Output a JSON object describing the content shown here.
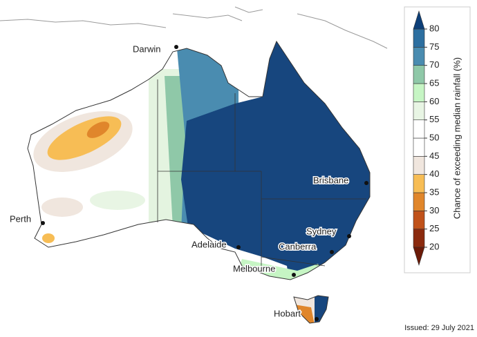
{
  "map": {
    "cities": [
      "Darwin",
      "Brisbane",
      "Perth",
      "Sydney",
      "Adelaide",
      "Canberra",
      "Melbourne",
      "Hobart"
    ]
  },
  "legend": {
    "title": "Chance of exceeding median rainfall (%)",
    "ticks": [
      20,
      25,
      30,
      35,
      40,
      45,
      50,
      55,
      60,
      65,
      70,
      75,
      80
    ],
    "colors": [
      "#6b1a08",
      "#8b2a0e",
      "#c0521a",
      "#e0862b",
      "#f7bd55",
      "#f0e6de",
      "#ffffff",
      "#ffffff",
      "#e8f5e4",
      "#c6f5c4",
      "#8fc8a8",
      "#4a8cb0",
      "#2d6fa0",
      "#0d3f78"
    ]
  },
  "issued": "Issued: 29 July 2021"
}
